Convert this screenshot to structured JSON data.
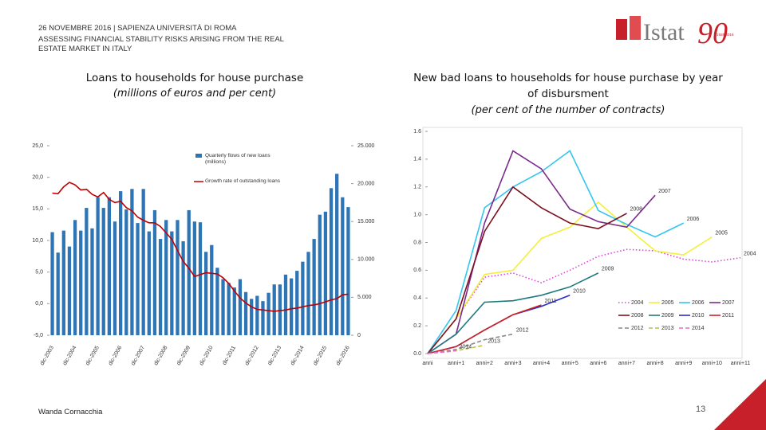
{
  "header": {
    "event": "26 NOVEMBRE 2016 | SAPIENZA UNIVERSITÀ DI ROMA",
    "topic": "ASSESSING FINANCIAL STABILITY RISKS ARISING FROM THE REAL ESTATE MARKET IN ITALY"
  },
  "logo": {
    "text": "Istat",
    "number": "90",
    "years": "1926-2016"
  },
  "footer": {
    "author": "Wanda Cornacchia",
    "page": "13"
  },
  "chart_data": [
    {
      "type": "combo",
      "title": "Loans to households for house purchase",
      "subtitle": "(millions of euros and per cent)",
      "categories": [
        "dic-2003",
        null,
        null,
        null,
        "dic-2004",
        null,
        null,
        null,
        "dic-2005",
        null,
        null,
        null,
        "dic-2006",
        null,
        null,
        null,
        "dic-2007",
        null,
        null,
        null,
        "dic-2008",
        null,
        null,
        null,
        "dic-2009",
        null,
        null,
        null,
        "dic-2010",
        null,
        null,
        null,
        "dic-2011",
        null,
        null,
        null,
        "dic-2012",
        null,
        null,
        null,
        "dic-2013",
        null,
        null,
        null,
        "dic-2014",
        null,
        null,
        null,
        "dic-2015",
        null,
        null,
        null,
        "dic-2016"
      ],
      "ylim": [
        -5,
        25
      ],
      "yticks": [
        {
          "value": -5,
          "label": "-5,0"
        },
        {
          "value": 0,
          "label": "0,0"
        },
        {
          "value": 5,
          "label": "5,0"
        },
        {
          "value": 10,
          "label": "10,0"
        },
        {
          "value": 15,
          "label": "15,0"
        },
        {
          "value": 20,
          "label": "20,0"
        },
        {
          "value": 25,
          "label": "25,0"
        }
      ],
      "y2lim": [
        0,
        25000
      ],
      "y2ticks": [
        0,
        {
          "value": 5000,
          "label": "5.000"
        },
        {
          "value": 10000,
          "label": "10.000"
        },
        {
          "value": 15000,
          "label": "15.000"
        },
        {
          "value": 20000,
          "label": "20.000"
        },
        {
          "value": 25000,
          "label": "25.000"
        }
      ],
      "grid": false,
      "legend": "upper-center",
      "series": [
        {
          "name": "Quarterly flows of new loans (millions)",
          "type": "bar",
          "axis": "y2",
          "color": "#2e75b6",
          "values": [
            13600,
            10900,
            13800,
            11700,
            15200,
            13800,
            16800,
            14100,
            18200,
            16800,
            18200,
            15000,
            19000,
            16600,
            19300,
            14800,
            19300,
            13700,
            16500,
            12700,
            15200,
            13700,
            15200,
            12400,
            16500,
            15000,
            14900,
            11000,
            11900,
            8900,
            7400,
            6900,
            6300,
            7400,
            5700,
            4800,
            5200,
            4500,
            5600,
            6700,
            6700,
            8000,
            7500,
            8500,
            9700,
            11000,
            12700,
            15900,
            16300,
            19400,
            21300,
            18200,
            16900
          ]
        },
        {
          "name": "Growth rate of outstanding loans",
          "type": "line",
          "color": "#c00000",
          "values": [
            17.5,
            17.4,
            18.5,
            19.2,
            18.8,
            18.0,
            18.1,
            17.3,
            16.9,
            17.6,
            16.5,
            16.0,
            16.2,
            15.2,
            14.7,
            13.7,
            13.2,
            12.8,
            12.8,
            12.2,
            11.2,
            10.2,
            8.4,
            6.7,
            5.6,
            4.3,
            4.6,
            4.9,
            4.8,
            4.7,
            4.1,
            3.2,
            2.0,
            0.9,
            0.1,
            -0.5,
            -0.9,
            -1.0,
            -1.1,
            -1.2,
            -1.1,
            -1.0,
            -0.8,
            -0.7,
            -0.5,
            -0.3,
            -0.2,
            0.0,
            0.3,
            0.6,
            0.8,
            1.4,
            1.5
          ]
        }
      ]
    },
    {
      "type": "line",
      "title": "New bad loans to households for house purchase by year of disbursment",
      "subtitle": "(per cent of the number of contracts)",
      "categories": [
        "anni",
        "anni+1",
        "anni+2",
        "anni+3",
        "anni+4",
        "anni+5",
        "anni+6",
        "anni+7",
        "anni+8",
        "anni+9",
        "anni+10",
        "anni+11"
      ],
      "ylim": [
        0,
        1.6
      ],
      "yticks": [
        {
          "value": 0,
          "label": "0.0"
        },
        0.2,
        0.4,
        0.6,
        0.8,
        {
          "value": 1,
          "label": "1.0"
        },
        1.2,
        1.4,
        1.6
      ],
      "grid": false,
      "legend": "bottom-right",
      "end_labels": true,
      "series": [
        {
          "name": "2004",
          "color": "#e040e0",
          "dash": "dotted",
          "values": [
            0,
            0.25,
            0.55,
            0.58,
            0.51,
            0.6,
            0.7,
            0.75,
            0.74,
            0.68,
            0.66,
            0.69
          ]
        },
        {
          "name": "2005",
          "color": "#f2f03a",
          "dash": "solid",
          "values": [
            0,
            0.25,
            0.57,
            0.6,
            0.83,
            0.91,
            1.09,
            0.91,
            0.74,
            0.71,
            0.84,
            null
          ]
        },
        {
          "name": "2006",
          "color": "#35c5ef",
          "dash": "solid",
          "values": [
            0,
            0.31,
            1.05,
            1.2,
            1.31,
            1.46,
            1.03,
            0.93,
            0.84,
            0.94,
            null,
            null
          ]
        },
        {
          "name": "2007",
          "color": "#7b2a8c",
          "dash": "solid",
          "values": [
            0,
            0.14,
            0.94,
            1.46,
            1.33,
            1.04,
            0.95,
            0.91,
            1.14,
            null,
            null,
            null
          ]
        },
        {
          "name": "2008",
          "color": "#7b1020",
          "dash": "solid",
          "values": [
            0,
            0.25,
            0.88,
            1.2,
            1.05,
            0.94,
            0.9,
            1.01,
            null,
            null,
            null,
            null
          ]
        },
        {
          "name": "2009",
          "color": "#1f7a80",
          "dash": "solid",
          "values": [
            0,
            0.14,
            0.37,
            0.38,
            0.42,
            0.48,
            0.58,
            null,
            null,
            null,
            null,
            null
          ]
        },
        {
          "name": "2010",
          "color": "#2a2ad0",
          "dash": "solid",
          "values": [
            0,
            0.05,
            0.17,
            0.28,
            0.34,
            0.42,
            null,
            null,
            null,
            null,
            null,
            null
          ]
        },
        {
          "name": "2011",
          "color": "#d02020",
          "dash": "solid",
          "values": [
            0,
            0.05,
            0.17,
            0.28,
            0.35,
            null,
            null,
            null,
            null,
            null,
            null,
            null
          ]
        },
        {
          "name": "2012",
          "color": "#888888",
          "dash": "dashed",
          "values": [
            0,
            0.03,
            0.1,
            0.14,
            null,
            null,
            null,
            null,
            null,
            null,
            null,
            null
          ]
        },
        {
          "name": "2013",
          "color": "#b8c040",
          "dash": "dashed",
          "values": [
            0,
            0.02,
            0.06,
            null,
            null,
            null,
            null,
            null,
            null,
            null,
            null,
            null
          ]
        },
        {
          "name": "2014",
          "color": "#ee66cc",
          "dash": "dashed",
          "values": [
            0,
            0.02,
            null,
            null,
            null,
            null,
            null,
            null,
            null,
            null,
            null,
            null
          ]
        }
      ]
    }
  ]
}
